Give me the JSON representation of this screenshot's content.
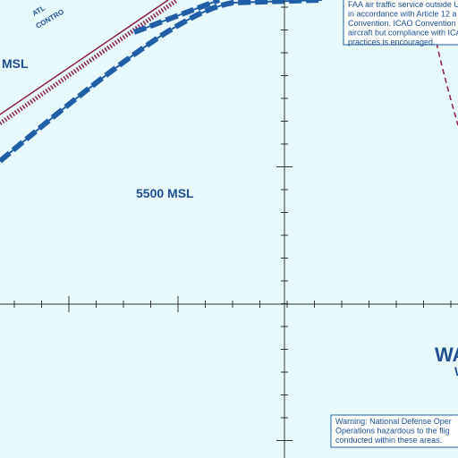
{
  "labels": {
    "atl_line1": "ATL",
    "atl_line2": "CONTRO",
    "msl_left": "MSL",
    "altitude": "5500 MSL",
    "wa": "WA",
    "w": "W"
  },
  "notes": [
    {
      "lines": [
        "FAA air traffic service outside U",
        "in accordance with Article 12 a",
        "Convention. ICAO Convention n",
        "aircraft but compliance with ICA",
        "practices is encouraged."
      ]
    },
    {
      "lines": [
        "Warning: National Defense Oper",
        "Operations hazardous to the flig",
        "conducted within these areas."
      ]
    }
  ]
}
